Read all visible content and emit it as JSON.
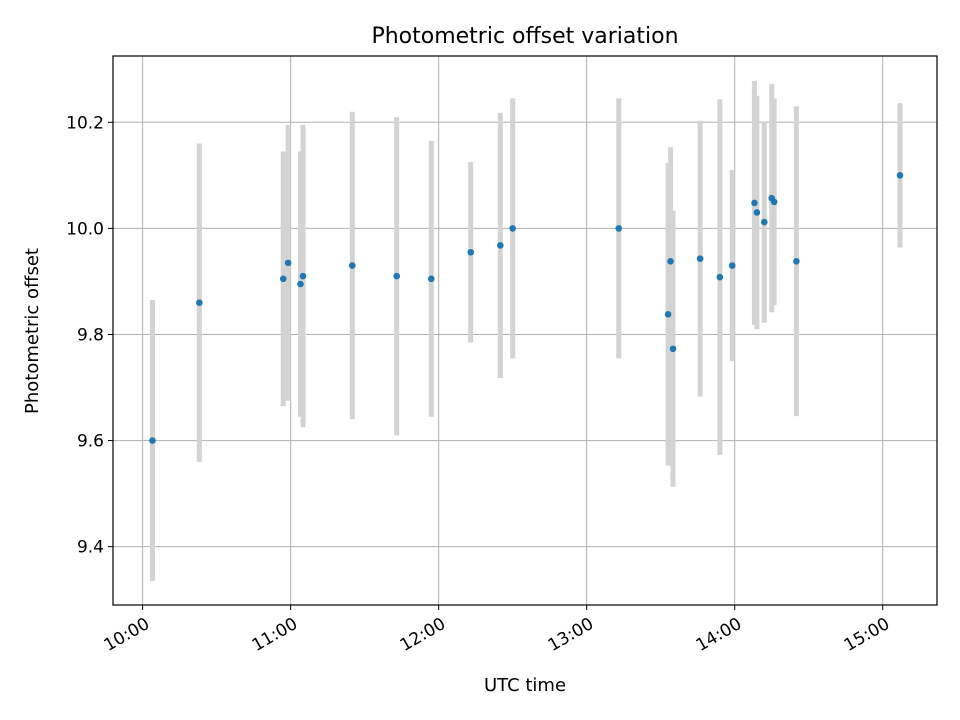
{
  "chart_data": {
    "type": "scatter",
    "title": "Photometric offset variation",
    "xlabel": "UTC time",
    "ylabel": "Photometric offset",
    "x_ticks": [
      "10:00",
      "11:00",
      "12:00",
      "13:00",
      "14:00",
      "15:00"
    ],
    "y_ticks": [
      "9.4",
      "9.6",
      "9.8",
      "10.0",
      "10.2"
    ],
    "xlim": [
      "09:48",
      "15:22"
    ],
    "ylim": [
      9.29,
      10.325
    ],
    "grid": true,
    "colors": {
      "marker": "#1f77b4",
      "errorbar": "#d3d3d3",
      "grid": "#b0b0b0"
    },
    "series": [
      {
        "points": [
          {
            "x": "10:04",
            "y": 9.6,
            "err": 0.265
          },
          {
            "x": "10:23",
            "y": 9.86,
            "err": 0.3
          },
          {
            "x": "10:57",
            "y": 9.905,
            "err": 0.24
          },
          {
            "x": "10:59",
            "y": 9.935,
            "err": 0.26
          },
          {
            "x": "11:04",
            "y": 9.895,
            "err": 0.25
          },
          {
            "x": "11:05",
            "y": 9.91,
            "err": 0.285
          },
          {
            "x": "11:25",
            "y": 9.93,
            "err": 0.29
          },
          {
            "x": "11:43",
            "y": 9.91,
            "err": 0.3
          },
          {
            "x": "11:57",
            "y": 9.905,
            "err": 0.26
          },
          {
            "x": "12:13",
            "y": 9.955,
            "err": 0.17
          },
          {
            "x": "12:25",
            "y": 9.968,
            "err": 0.25
          },
          {
            "x": "12:30",
            "y": 10.0,
            "err": 0.245
          },
          {
            "x": "13:13",
            "y": 10.0,
            "err": 0.245
          },
          {
            "x": "13:33",
            "y": 9.838,
            "err": 0.285
          },
          {
            "x": "13:34",
            "y": 9.938,
            "err": 0.215
          },
          {
            "x": "13:35",
            "y": 9.773,
            "err": 0.26
          },
          {
            "x": "13:46",
            "y": 9.943,
            "err": 0.26
          },
          {
            "x": "13:54",
            "y": 9.908,
            "err": 0.335
          },
          {
            "x": "13:59",
            "y": 9.93,
            "err": 0.18
          },
          {
            "x": "14:08",
            "y": 10.048,
            "err": 0.23
          },
          {
            "x": "14:09",
            "y": 10.03,
            "err": 0.22
          },
          {
            "x": "14:12",
            "y": 10.012,
            "err": 0.19
          },
          {
            "x": "14:15",
            "y": 10.057,
            "err": 0.215
          },
          {
            "x": "14:16",
            "y": 10.05,
            "err": 0.195
          },
          {
            "x": "14:25",
            "y": 9.938,
            "err": 0.292
          },
          {
            "x": "15:07",
            "y": 10.1,
            "err": 0.136
          }
        ]
      }
    ]
  }
}
